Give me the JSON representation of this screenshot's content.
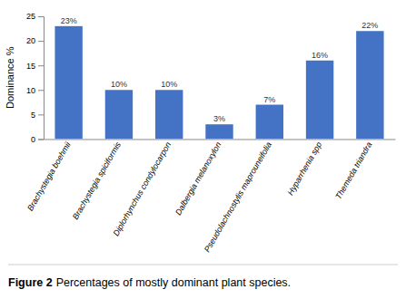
{
  "chart_data": {
    "type": "bar",
    "categories": [
      "Brachystegia boehmii",
      "Brachystegia spiciformis",
      "Diplorhynchus condylocarpon",
      "Dalbergia melanoxylon",
      "Pseudolachnostylis maprouneifolia",
      "Hyparrhenia spp",
      "Themeda triandra"
    ],
    "values": [
      23,
      10,
      10,
      3,
      7,
      16,
      22
    ],
    "value_labels": [
      "23%",
      "10%",
      "10%",
      "3%",
      "7%",
      "16%",
      "22%"
    ],
    "data_labels": true,
    "color": "#4472C4",
    "ylabel": "Dominance %",
    "ylim": [
      0,
      25
    ],
    "yticks": [
      0,
      5,
      10,
      15,
      20,
      25
    ],
    "grid": false,
    "caption_label": "Figure 2",
    "caption": "Percentages of mostly dominant plant species."
  }
}
